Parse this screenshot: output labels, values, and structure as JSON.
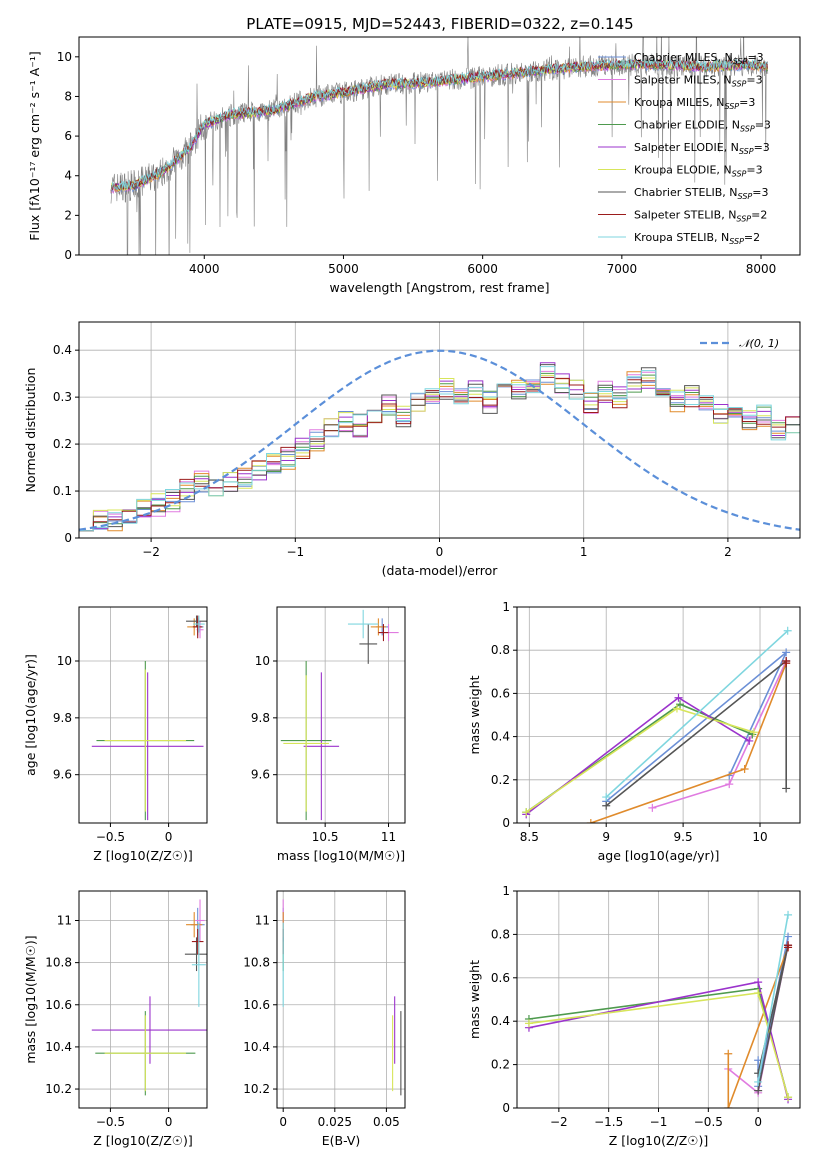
{
  "figure_title": "PLATE=0915, MJD=52443, FIBERID=0322, z=0.145",
  "colors": {
    "chabrier_miles": "#6b8fd6",
    "salpeter_miles": "#e07be0",
    "kroupa_miles": "#e08b2c",
    "chabrier_elodie": "#4e9a4e",
    "salpeter_elodie": "#9b33cc",
    "kroupa_elodie": "#d7e55a",
    "chabrier_stelib": "#555555",
    "salpeter_stelib": "#9b1c1c",
    "kroupa_stelib": "#7fd6df",
    "data": "#808080",
    "normal": "#5b8fd9",
    "grid": "#b0b0b0"
  },
  "chart_data": [
    {
      "id": "spectrum",
      "type": "line",
      "title": "PLATE=0915, MJD=52443, FIBERID=0322, z=0.145",
      "xlabel": "wavelength [Angstrom, rest frame]",
      "ylabel": "Flux [fλ10⁻¹⁷ erg cm⁻² s⁻¹ A⁻¹]",
      "xlim": [
        3100,
        8280
      ],
      "ylim": [
        0,
        11
      ],
      "xticks": [
        4000,
        5000,
        6000,
        7000,
        8000
      ],
      "yticks": [
        0,
        2,
        4,
        6,
        8,
        10
      ],
      "grid": false,
      "legend_position": "upper-right",
      "continuum_x": [
        3330,
        3500,
        3700,
        3900,
        4000,
        4200,
        4500,
        4800,
        5000,
        5300,
        5600,
        6000,
        6400,
        6700,
        7000,
        7300,
        7600,
        7900,
        8050
      ],
      "continuum_y": [
        3.4,
        3.5,
        4.2,
        5.4,
        6.6,
        7.1,
        7.3,
        8.0,
        8.2,
        8.6,
        8.7,
        9.0,
        9.3,
        9.5,
        9.6,
        9.6,
        9.5,
        9.6,
        9.5
      ],
      "series": [
        {
          "name": "Chabrier MILES, N",
          "subscript": "SSP",
          "suffix": "=3",
          "color_key": "chabrier_miles"
        },
        {
          "name": "Salpeter MILES, N",
          "subscript": "SSP",
          "suffix": "=3",
          "color_key": "salpeter_miles"
        },
        {
          "name": "Kroupa MILES, N",
          "subscript": "SSP",
          "suffix": "=3",
          "color_key": "kroupa_miles"
        },
        {
          "name": "Chabrier ELODIE, N",
          "subscript": "SSP",
          "suffix": "=3",
          "color_key": "chabrier_elodie"
        },
        {
          "name": "Salpeter ELODIE, N",
          "subscript": "SSP",
          "suffix": "=3",
          "color_key": "salpeter_elodie"
        },
        {
          "name": "Kroupa ELODIE, N",
          "subscript": "SSP",
          "suffix": "=3",
          "color_key": "kroupa_elodie"
        },
        {
          "name": "Chabrier STELIB, N",
          "subscript": "SSP",
          "suffix": "=3",
          "color_key": "chabrier_stelib"
        },
        {
          "name": "Salpeter STELIB, N",
          "subscript": "SSP",
          "suffix": "=2",
          "color_key": "salpeter_stelib"
        },
        {
          "name": "Kroupa STELIB, N",
          "subscript": "SSP",
          "suffix": "=2",
          "color_key": "kroupa_stelib"
        }
      ]
    },
    {
      "id": "residuals",
      "type": "histogram",
      "xlabel": "(data-model)/error",
      "ylabel": "Normed distribution",
      "xlim": [
        -2.5,
        2.5
      ],
      "ylim": [
        0,
        0.46
      ],
      "xticks": [
        -2,
        -1,
        0,
        1,
        2
      ],
      "yticks": [
        0.0,
        0.1,
        0.2,
        0.3,
        0.4
      ],
      "grid": true,
      "legend_position": "upper-right",
      "legend_label": "𝒩(0, 1)",
      "bin_width": 0.1,
      "bin_start": -2.5,
      "base_heights": [
        0.04,
        0.04,
        0.04,
        0.05,
        0.06,
        0.07,
        0.08,
        0.1,
        0.12,
        0.1,
        0.12,
        0.13,
        0.14,
        0.16,
        0.17,
        0.19,
        0.21,
        0.23,
        0.25,
        0.24,
        0.25,
        0.28,
        0.26,
        0.29,
        0.3,
        0.32,
        0.3,
        0.31,
        0.29,
        0.31,
        0.32,
        0.33,
        0.35,
        0.33,
        0.32,
        0.29,
        0.31,
        0.3,
        0.33,
        0.34,
        0.31,
        0.29,
        0.3,
        0.28,
        0.26,
        0.27,
        0.25,
        0.26,
        0.23,
        0.24,
        0.25,
        0.22,
        0.21,
        0.2,
        0.19,
        0.18,
        0.17,
        0.15,
        0.14,
        0.13,
        0.12,
        0.11,
        0.1,
        0.09,
        0.08,
        0.07,
        0.07,
        0.06,
        0.05,
        0.05
      ],
      "normal_mu": 0,
      "normal_sigma": 1
    },
    {
      "id": "age_vs_Z",
      "type": "errorbar",
      "xlabel": "Z [log10(Z/Z☉)]",
      "ylabel": "age  [log10(age/yr)]",
      "xlim": [
        -0.77,
        0.33
      ],
      "ylim": [
        9.43,
        10.19
      ],
      "xticks": [
        -0.5,
        0.0
      ],
      "yticks": [
        9.6,
        9.8,
        10.0
      ],
      "grid": true,
      "points": [
        {
          "x": 0.25,
          "y": 10.12,
          "xerr": 0.05,
          "yerr": 0.03,
          "color_key": "chabrier_miles"
        },
        {
          "x": 0.27,
          "y": 10.11,
          "xerr": 0.03,
          "yerr": 0.03,
          "color_key": "salpeter_miles"
        },
        {
          "x": 0.22,
          "y": 10.12,
          "xerr": 0.06,
          "yerr": 0.03,
          "color_key": "kroupa_miles"
        },
        {
          "x": -0.2,
          "y": 9.72,
          "xerr": 0.42,
          "yerr": 0.28,
          "color_key": "chabrier_elodie"
        },
        {
          "x": -0.18,
          "y": 9.7,
          "xerr": 0.48,
          "yerr": 0.26,
          "color_key": "salpeter_elodie"
        },
        {
          "x": -0.2,
          "y": 9.72,
          "xerr": 0.35,
          "yerr": 0.25,
          "color_key": "kroupa_elodie"
        },
        {
          "x": 0.24,
          "y": 10.14,
          "xerr": 0.09,
          "yerr": 0.02,
          "color_key": "chabrier_stelib"
        },
        {
          "x": 0.25,
          "y": 10.12,
          "xerr": 0.04,
          "yerr": 0.04,
          "color_key": "salpeter_stelib"
        },
        {
          "x": 0.26,
          "y": 10.13,
          "xerr": 0.05,
          "yerr": 0.03,
          "color_key": "kroupa_stelib"
        }
      ]
    },
    {
      "id": "age_vs_mass",
      "type": "errorbar",
      "xlabel": "mass [log10(M/M☉)]",
      "ylabel": "",
      "xlim": [
        10.12,
        11.13
      ],
      "ylim": [
        9.43,
        10.19
      ],
      "xticks": [
        10.5,
        11.0
      ],
      "yticks": [
        9.6,
        9.8,
        10.0
      ],
      "grid": true,
      "points": [
        {
          "x": 10.95,
          "y": 10.12,
          "xerr": 0.05,
          "yerr": 0.03,
          "color_key": "chabrier_miles"
        },
        {
          "x": 11.0,
          "y": 10.1,
          "xerr": 0.08,
          "yerr": 0.03,
          "color_key": "salpeter_miles"
        },
        {
          "x": 10.92,
          "y": 10.12,
          "xerr": 0.06,
          "yerr": 0.03,
          "color_key": "kroupa_miles"
        },
        {
          "x": 10.35,
          "y": 9.72,
          "xerr": 0.2,
          "yerr": 0.28,
          "color_key": "chabrier_elodie"
        },
        {
          "x": 10.47,
          "y": 9.7,
          "xerr": 0.14,
          "yerr": 0.26,
          "color_key": "salpeter_elodie"
        },
        {
          "x": 10.35,
          "y": 9.71,
          "xerr": 0.18,
          "yerr": 0.24,
          "color_key": "kroupa_elodie"
        },
        {
          "x": 10.84,
          "y": 10.06,
          "xerr": 0.07,
          "yerr": 0.07,
          "color_key": "chabrier_stelib"
        },
        {
          "x": 10.96,
          "y": 10.1,
          "xerr": 0.04,
          "yerr": 0.03,
          "color_key": "salpeter_stelib"
        },
        {
          "x": 10.8,
          "y": 10.13,
          "xerr": 0.12,
          "yerr": 0.05,
          "color_key": "kroupa_stelib"
        }
      ]
    },
    {
      "id": "weight_vs_age",
      "type": "line",
      "xlabel": "age  [log10(age/yr)]",
      "ylabel": "mass weight",
      "xlim": [
        8.42,
        10.26
      ],
      "ylim": [
        0,
        1
      ],
      "xticks": [
        8.5,
        9.0,
        9.5,
        10.0
      ],
      "yticks": [
        0.0,
        0.2,
        0.4,
        0.6,
        0.8,
        1.0
      ],
      "grid": true,
      "series": [
        {
          "color_key": "chabrier_miles",
          "x": [
            9.8,
            10.17,
            9.0
          ],
          "y": [
            0.22,
            0.79,
            0.1
          ]
        },
        {
          "color_key": "salpeter_miles",
          "x": [
            9.3,
            9.8,
            10.17
          ],
          "y": [
            0.07,
            0.18,
            0.75
          ]
        },
        {
          "color_key": "kroupa_miles",
          "x": [
            8.9,
            9.9,
            10.17
          ],
          "y": [
            0.0,
            0.25,
            0.74
          ]
        },
        {
          "color_key": "chabrier_elodie",
          "x": [
            8.48,
            9.48,
            9.95
          ],
          "y": [
            0.05,
            0.55,
            0.41
          ]
        },
        {
          "color_key": "salpeter_elodie",
          "x": [
            8.48,
            9.47,
            9.93
          ],
          "y": [
            0.04,
            0.58,
            0.38
          ]
        },
        {
          "color_key": "kroupa_elodie",
          "x": [
            8.48,
            9.46,
            9.96
          ],
          "y": [
            0.05,
            0.53,
            0.42
          ]
        },
        {
          "color_key": "chabrier_stelib",
          "x": [
            9.0,
            10.17,
            10.17
          ],
          "y": [
            0.08,
            0.75,
            0.16
          ]
        },
        {
          "color_key": "salpeter_stelib",
          "x": [
            10.17,
            10.17
          ],
          "y": [
            0.75,
            0.74
          ]
        },
        {
          "color_key": "kroupa_stelib",
          "x": [
            9.0,
            10.18
          ],
          "y": [
            0.12,
            0.89
          ]
        }
      ]
    },
    {
      "id": "mass_vs_Z",
      "type": "errorbar",
      "xlabel": "Z [log10(Z/Z☉)]",
      "ylabel": "mass [log10(M/M☉)]",
      "xlim": [
        -0.77,
        0.33
      ],
      "ylim": [
        10.11,
        11.14
      ],
      "xticks": [
        -0.5,
        0.0
      ],
      "yticks": [
        10.2,
        10.4,
        10.6,
        10.8,
        11.0
      ],
      "grid": true,
      "points": [
        {
          "x": 0.25,
          "y": 10.98,
          "xerr": 0.06,
          "yerr": 0.08,
          "color_key": "chabrier_miles"
        },
        {
          "x": 0.27,
          "y": 11.0,
          "xerr": 0.04,
          "yerr": 0.1,
          "color_key": "salpeter_miles"
        },
        {
          "x": 0.22,
          "y": 10.98,
          "xerr": 0.07,
          "yerr": 0.06,
          "color_key": "kroupa_miles"
        },
        {
          "x": -0.2,
          "y": 10.37,
          "xerr": 0.43,
          "yerr": 0.2,
          "color_key": "chabrier_elodie"
        },
        {
          "x": -0.16,
          "y": 10.48,
          "xerr": 0.5,
          "yerr": 0.16,
          "color_key": "salpeter_elodie"
        },
        {
          "x": -0.2,
          "y": 10.37,
          "xerr": 0.35,
          "yerr": 0.18,
          "color_key": "kroupa_elodie"
        },
        {
          "x": 0.24,
          "y": 10.84,
          "xerr": 0.1,
          "yerr": 0.08,
          "color_key": "chabrier_stelib"
        },
        {
          "x": 0.25,
          "y": 10.9,
          "xerr": 0.05,
          "yerr": 0.06,
          "color_key": "salpeter_stelib"
        },
        {
          "x": 0.26,
          "y": 10.79,
          "xerr": 0.06,
          "yerr": 0.2,
          "color_key": "kroupa_stelib"
        }
      ]
    },
    {
      "id": "mass_vs_ebv",
      "type": "errorbar",
      "xlabel": "E(B-V)",
      "ylabel": "",
      "xlim": [
        -0.003,
        0.059
      ],
      "ylim": [
        10.11,
        11.14
      ],
      "xticks": [
        0.0,
        0.025,
        0.05
      ],
      "yticks": [
        10.2,
        10.4,
        10.6,
        10.8,
        11.0
      ],
      "grid": true,
      "points": [
        {
          "x": 0.0,
          "y": 10.98,
          "xerr": 0.0,
          "yerr": 0.08,
          "color_key": "chabrier_miles"
        },
        {
          "x": 0.0,
          "y": 11.0,
          "xerr": 0.0,
          "yerr": 0.1,
          "color_key": "salpeter_miles"
        },
        {
          "x": 0.0,
          "y": 10.98,
          "xerr": 0.0,
          "yerr": 0.06,
          "color_key": "kroupa_miles"
        },
        {
          "x": 0.057,
          "y": 10.37,
          "xerr": 0.0,
          "yerr": 0.2,
          "color_key": "chabrier_stelib"
        },
        {
          "x": 0.054,
          "y": 10.48,
          "xerr": 0.0,
          "yerr": 0.16,
          "color_key": "salpeter_elodie"
        },
        {
          "x": 0.053,
          "y": 10.37,
          "xerr": 0.0,
          "yerr": 0.18,
          "color_key": "kroupa_elodie"
        },
        {
          "x": 0.0,
          "y": 10.84,
          "xerr": 0.0,
          "yerr": 0.08,
          "color_key": "chabrier_elodie"
        },
        {
          "x": 0.0,
          "y": 10.9,
          "xerr": 0.0,
          "yerr": 0.06,
          "color_key": "salpeter_stelib"
        },
        {
          "x": 0.0,
          "y": 10.79,
          "xerr": 0.0,
          "yerr": 0.2,
          "color_key": "kroupa_stelib"
        }
      ]
    },
    {
      "id": "weight_vs_Z",
      "type": "line",
      "xlabel": "Z [log10(Z/Z☉)]",
      "ylabel": "mass weight",
      "xlim": [
        -2.42,
        0.42
      ],
      "ylim": [
        0,
        1
      ],
      "xticks": [
        -2.0,
        -1.5,
        -1.0,
        -0.5,
        0.0
      ],
      "yticks": [
        0.0,
        0.2,
        0.4,
        0.6,
        0.8,
        1.0
      ],
      "grid": true,
      "series": [
        {
          "color_key": "chabrier_miles",
          "x": [
            0.3,
            0.0,
            0.0
          ],
          "y": [
            0.79,
            0.1,
            0.22
          ]
        },
        {
          "color_key": "salpeter_miles",
          "x": [
            -0.3,
            0.0,
            0.3
          ],
          "y": [
            0.18,
            0.07,
            0.75
          ]
        },
        {
          "color_key": "kroupa_miles",
          "x": [
            -0.3,
            -0.3,
            0.3
          ],
          "y": [
            0.25,
            0.0,
            0.74
          ]
        },
        {
          "color_key": "chabrier_elodie",
          "x": [
            -2.3,
            0.0,
            0.3
          ],
          "y": [
            0.41,
            0.55,
            0.05
          ]
        },
        {
          "color_key": "salpeter_elodie",
          "x": [
            -2.3,
            0.0,
            0.3
          ],
          "y": [
            0.37,
            0.58,
            0.04
          ]
        },
        {
          "color_key": "kroupa_elodie",
          "x": [
            -2.3,
            0.0,
            0.3
          ],
          "y": [
            0.39,
            0.53,
            0.05
          ]
        },
        {
          "color_key": "chabrier_stelib",
          "x": [
            0.0,
            0.3,
            0.0
          ],
          "y": [
            0.16,
            0.75,
            0.08
          ]
        },
        {
          "color_key": "salpeter_stelib",
          "x": [
            0.3,
            0.3
          ],
          "y": [
            0.75,
            0.74
          ]
        },
        {
          "color_key": "kroupa_stelib",
          "x": [
            0.0,
            0.3
          ],
          "y": [
            0.12,
            0.89
          ]
        }
      ]
    }
  ]
}
